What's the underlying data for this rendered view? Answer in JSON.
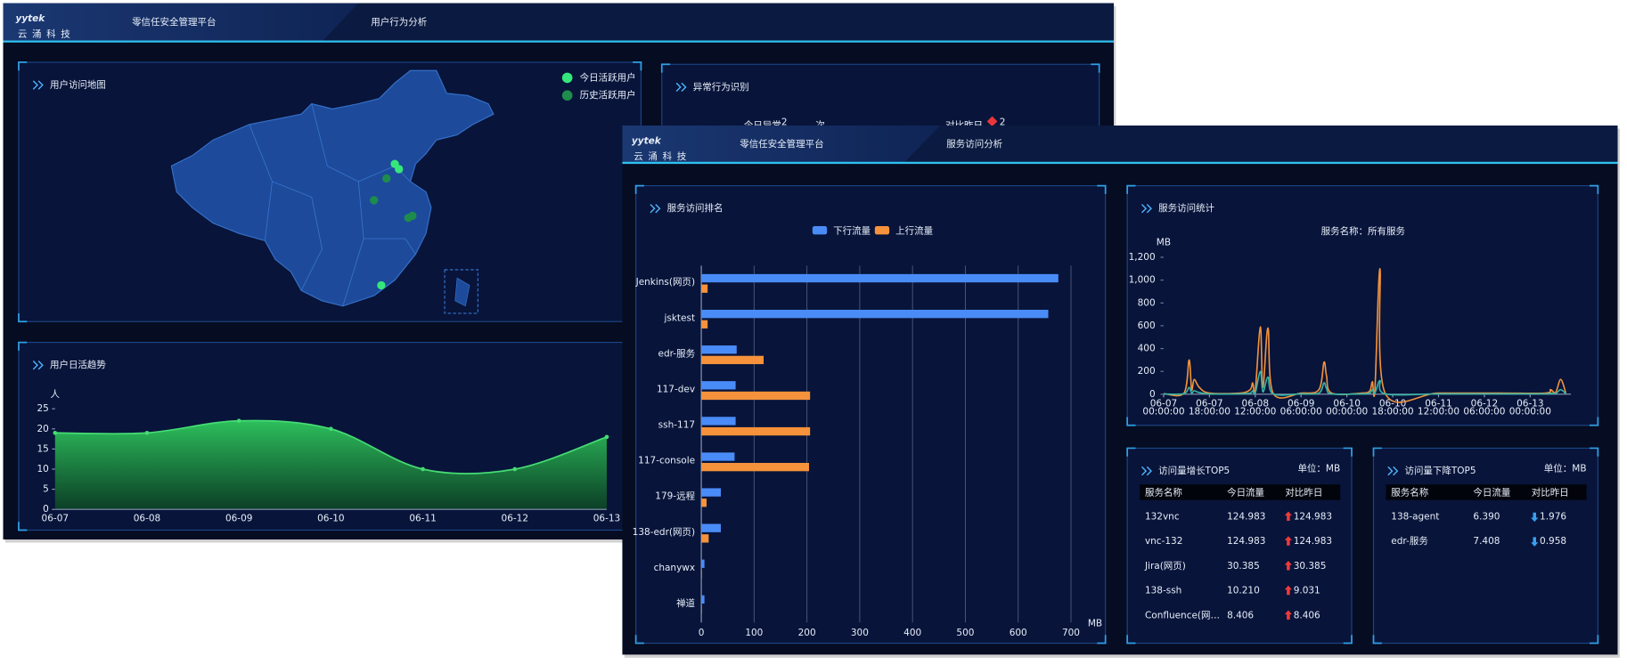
{
  "user_behavior_window": {
    "header": {
      "logo": "yytek",
      "logo_subtitle": "云 涌 科 技",
      "platform": "零信任安全管理平台",
      "tab": "用户行为分析"
    },
    "map_panel": {
      "title": "用户访问地图",
      "legend": [
        {
          "name": "今日活跃用户",
          "color": "#35e77a"
        },
        {
          "name": "历史活跃用户",
          "color": "#1e8c4c"
        }
      ]
    },
    "anomaly_panel": {
      "title": "异常行为识别",
      "today_label": "今日异常",
      "today_count": "2",
      "count_unit": "次",
      "compare_label": "对比昨日",
      "compare_count": "2"
    },
    "trend_chart": {
      "type": "area",
      "title": "用户日活趋势",
      "y_label": "人",
      "categories": [
        "06-07",
        "06-08",
        "06-09",
        "06-10",
        "06-11",
        "06-12",
        "06-13"
      ],
      "values": [
        19,
        19,
        22,
        20,
        10,
        10,
        18
      ],
      "color": "#45dc73",
      "ylim": [
        0,
        25
      ],
      "yticks": [
        0,
        5,
        10,
        15,
        20,
        25
      ]
    }
  },
  "service_window": {
    "header": {
      "logo": "yytek",
      "logo_subtitle": "云 涌 科 技",
      "platform": "零信任安全管理平台",
      "tab": "服务访问分析"
    },
    "rank_chart": {
      "type": "hbar",
      "title": "服务访问排名",
      "categories": [
        "Jenkins(网页)",
        "jsktest",
        "edr-服务",
        "117-dev",
        "ssh-117",
        "117-console",
        "179-远程",
        "138-edr(网页)",
        "chanywx",
        "禅道"
      ],
      "series": [
        {
          "name": "下行流量",
          "color": "#4a8cf7",
          "values": [
            676,
            657,
            67,
            65,
            65,
            63,
            37,
            37,
            6,
            6
          ]
        },
        {
          "name": "上行流量",
          "color": "#f5923b",
          "values": [
            12,
            12,
            118,
            206,
            206,
            204,
            10,
            14,
            1,
            1
          ]
        }
      ],
      "xlim": [
        0,
        720
      ],
      "xticks": [
        0,
        100,
        200,
        300,
        400,
        500,
        600,
        700
      ],
      "x_label": "MB",
      "grid": true
    },
    "stats_chart": {
      "type": "line",
      "title": "服务访问统计",
      "subtitle": "服务名称：所有服务",
      "y_label": "MB",
      "x": [
        "06-07 00:00:00",
        "06-07 08:00:00",
        "06-07 10:00:00",
        "06-07 11:00:00",
        "06-07 12:00:00",
        "06-07 14:00:00",
        "06-07 18:00:00",
        "06-08 06:00:00",
        "06-08 10:00:00",
        "06-08 11:00:00",
        "06-08 12:00:00",
        "06-08 14:00:00",
        "06-08 15:00:00",
        "06-08 17:00:00",
        "06-08 19:00:00",
        "06-09 06:00:00",
        "06-09 13:00:00",
        "06-09 15:00:00",
        "06-09 16:00:00",
        "06-09 18:00:00",
        "06-10 06:00:00",
        "06-10 09:00:00",
        "06-10 10:00:00",
        "06-10 11:00:00",
        "06-10 13:00:00",
        "06-10 15:00:00",
        "06-11 12:00:00",
        "06-12 12:00:00",
        "06-13 06:00:00",
        "06-13 08:00:00",
        "06-13 10:00:00",
        "06-13 12:00:00",
        "06-13 14:00:00"
      ],
      "series": [
        {
          "color": "#f0923b",
          "values": [
            5,
            10,
            300,
            40,
            130,
            60,
            10,
            10,
            40,
            100,
            30,
            590,
            60,
            580,
            10,
            10,
            40,
            280,
            160,
            10,
            10,
            30,
            110,
            40,
            1100,
            10,
            10,
            10,
            10,
            40,
            15,
            130,
            10
          ]
        },
        {
          "color": "#36b5a6",
          "values": [
            2,
            5,
            60,
            10,
            30,
            15,
            3,
            3,
            10,
            30,
            10,
            200,
            20,
            150,
            3,
            3,
            10,
            100,
            50,
            3,
            3,
            10,
            40,
            10,
            120,
            3,
            3,
            3,
            3,
            10,
            5,
            40,
            3
          ]
        }
      ],
      "xlim": [
        "06-07 00:00:00",
        "06-13 16:00:00"
      ],
      "xticks": [
        {
          "value": "06-07 00:00:00",
          "label": [
            "06-07",
            "00:00:00"
          ]
        },
        {
          "value": "06-07 18:00:00",
          "label": [
            "06-07",
            "18:00:00"
          ]
        },
        {
          "value": "06-08 12:00:00",
          "label": [
            "06-08",
            "12:00:00"
          ]
        },
        {
          "value": "06-09 06:00:00",
          "label": [
            "06-09",
            "06:00:00"
          ]
        },
        {
          "value": "06-10 00:00:00",
          "label": [
            "06-10",
            "00:00:00"
          ]
        },
        {
          "value": "06-10 18:00:00",
          "label": [
            "06-10",
            "18:00:00"
          ]
        },
        {
          "value": "06-11 12:00:00",
          "label": [
            "06-11",
            "12:00:00"
          ]
        },
        {
          "value": "06-12 06:00:00",
          "label": [
            "06-12",
            "06:00:00"
          ]
        },
        {
          "value": "06-13 00:00:00",
          "label": [
            "06-13",
            "00:00:00"
          ]
        }
      ],
      "ylim": [
        0,
        1200
      ],
      "yticks": [
        0,
        200,
        400,
        600,
        800,
        {
          "value": 1000,
          "label": "1,000"
        },
        {
          "value": 1200,
          "label": "1,200"
        }
      ]
    },
    "growth_table": {
      "title": "访问量增长TOP5",
      "unit": "单位：MB",
      "columns": [
        "服务名称",
        "今日流量",
        "对比昨日"
      ],
      "rows": [
        [
          "132vnc",
          "124.983",
          "124.983"
        ],
        [
          "vnc-132",
          "124.983",
          "124.983"
        ],
        [
          "Jira(网页)",
          "30.385",
          "30.385"
        ],
        [
          "138-ssh",
          "10.210",
          "9.031"
        ],
        [
          "Confluence(网…",
          "8.406",
          "8.406"
        ]
      ]
    },
    "decline_table": {
      "title": "访问量下降TOP5",
      "unit": "单位：MB",
      "columns": [
        "服务名称",
        "今日流量",
        "对比昨日"
      ],
      "rows": [
        [
          "138-agent",
          "6.390",
          "1.976"
        ],
        [
          "edr-服务",
          "7.408",
          "0.958"
        ]
      ]
    }
  }
}
